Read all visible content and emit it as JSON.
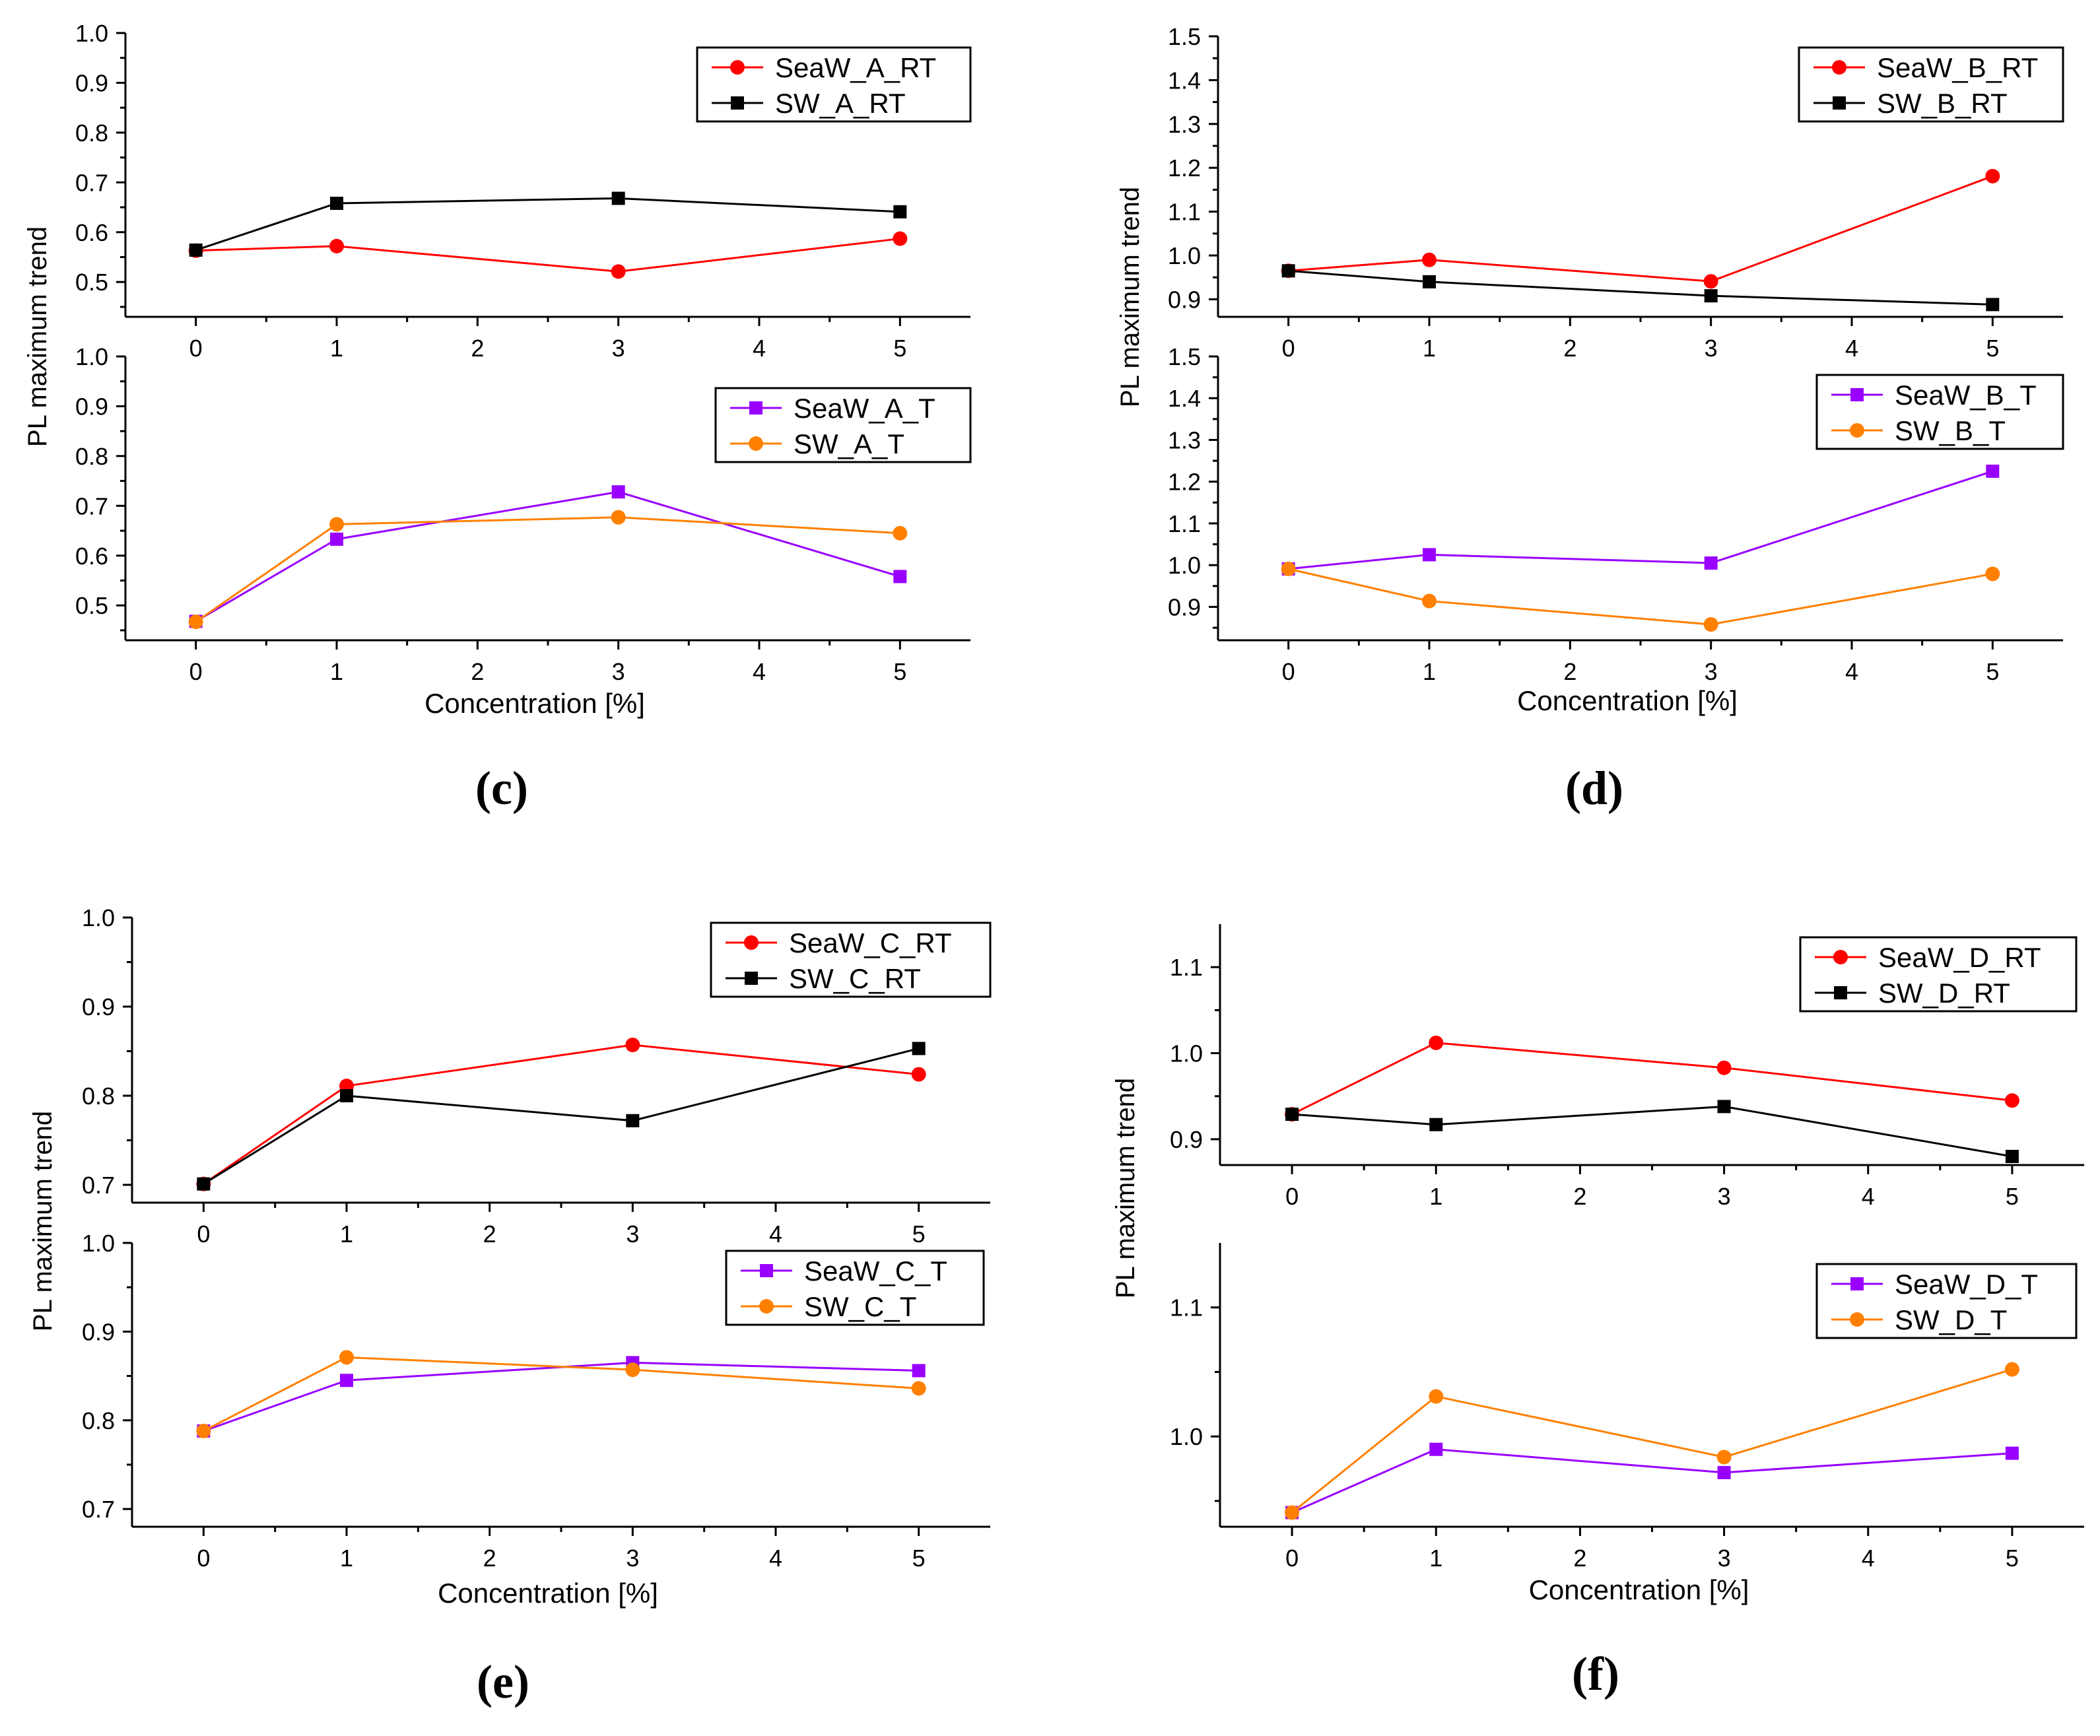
{
  "chart_data": [
    {
      "type": "line",
      "panel": "(c)",
      "ylabel": "PL maximum trend",
      "xlabel": "Concentration [%]",
      "x_ticks": [
        0,
        1,
        2,
        3,
        4,
        5
      ],
      "subplots": [
        {
          "ylim": [
            0.43,
            1.0
          ],
          "y_ticks": [
            0.5,
            0.6,
            0.7,
            0.8,
            0.9,
            1.0
          ],
          "legend_position": "top-right",
          "series": [
            {
              "name": "SeaW_A_RT",
              "color": "#ff0000",
              "marker": "circle",
              "x": [
                0,
                1,
                3,
                5
              ],
              "y": [
                0.563,
                0.572,
                0.521,
                0.587
              ]
            },
            {
              "name": "SW_A_RT",
              "color": "#000000",
              "marker": "square",
              "x": [
                0,
                1,
                3,
                5
              ],
              "y": [
                0.564,
                0.658,
                0.668,
                0.641
              ]
            }
          ]
        },
        {
          "ylim": [
            0.43,
            1.0
          ],
          "y_ticks": [
            0.5,
            0.6,
            0.7,
            0.8,
            0.9,
            1.0
          ],
          "legend_position": "top-right",
          "series": [
            {
              "name": "SeaW_A_T",
              "color": "#9900ff",
              "marker": "square",
              "x": [
                0,
                1,
                3,
                5
              ],
              "y": [
                0.468,
                0.633,
                0.728,
                0.558
              ]
            },
            {
              "name": "SW_A_T",
              "color": "#ff8000",
              "marker": "circle",
              "x": [
                0,
                1,
                3,
                5
              ],
              "y": [
                0.467,
                0.663,
                0.677,
                0.645
              ]
            }
          ]
        }
      ]
    },
    {
      "type": "line",
      "panel": "(d)",
      "ylabel": "PL maximum trend",
      "xlabel": "Concentration [%]",
      "x_ticks": [
        0,
        1,
        2,
        3,
        4,
        5
      ],
      "subplots": [
        {
          "ylim": [
            0.86,
            1.5
          ],
          "y_ticks": [
            0.9,
            1.0,
            1.1,
            1.2,
            1.3,
            1.4,
            1.5
          ],
          "legend_position": "top-right",
          "series": [
            {
              "name": "SeaW_B_RT",
              "color": "#ff0000",
              "marker": "circle",
              "x": [
                0,
                1,
                3,
                5
              ],
              "y": [
                0.965,
                0.99,
                0.941,
                1.181
              ]
            },
            {
              "name": "SW_B_RT",
              "color": "#000000",
              "marker": "square",
              "x": [
                0,
                1,
                3,
                5
              ],
              "y": [
                0.965,
                0.94,
                0.908,
                0.888
              ]
            }
          ]
        },
        {
          "ylim": [
            0.82,
            1.5
          ],
          "y_ticks": [
            0.9,
            1.0,
            1.1,
            1.2,
            1.3,
            1.4,
            1.5
          ],
          "legend_position": "top-right",
          "series": [
            {
              "name": "SeaW_B_T",
              "color": "#9900ff",
              "marker": "square",
              "x": [
                0,
                1,
                3,
                5
              ],
              "y": [
                0.991,
                1.025,
                1.005,
                1.225
              ]
            },
            {
              "name": "SW_B_T",
              "color": "#ff8000",
              "marker": "circle",
              "x": [
                0,
                1,
                3,
                5
              ],
              "y": [
                0.991,
                0.914,
                0.858,
                0.979
              ]
            }
          ]
        }
      ]
    },
    {
      "type": "line",
      "panel": "(e)",
      "ylabel": "PL maximum trend",
      "xlabel": "Concentration [%]",
      "x_ticks": [
        0,
        1,
        2,
        3,
        4,
        5
      ],
      "subplots": [
        {
          "ylim": [
            0.68,
            1.0
          ],
          "y_ticks": [
            0.7,
            0.8,
            0.9,
            1.0
          ],
          "legend_position": "top-right",
          "series": [
            {
              "name": "SeaW_C_RT",
              "color": "#ff0000",
              "marker": "circle",
              "x": [
                0,
                1,
                3,
                5
              ],
              "y": [
                0.701,
                0.811,
                0.857,
                0.824
              ]
            },
            {
              "name": "SW_C_RT",
              "color": "#000000",
              "marker": "square",
              "x": [
                0,
                1,
                3,
                5
              ],
              "y": [
                0.701,
                0.8,
                0.772,
                0.853
              ]
            }
          ]
        },
        {
          "ylim": [
            0.68,
            1.0
          ],
          "y_ticks": [
            0.7,
            0.8,
            0.9,
            1.0
          ],
          "legend_position": "top-right",
          "series": [
            {
              "name": "SeaW_C_T",
              "color": "#9900ff",
              "marker": "square",
              "x": [
                0,
                1,
                3,
                5
              ],
              "y": [
                0.788,
                0.845,
                0.865,
                0.856
              ]
            },
            {
              "name": "SW_C_T",
              "color": "#ff8000",
              "marker": "circle",
              "x": [
                0,
                1,
                3,
                5
              ],
              "y": [
                0.788,
                0.871,
                0.857,
                0.836
              ]
            }
          ]
        }
      ]
    },
    {
      "type": "line",
      "panel": "(f)",
      "ylabel": "PL maximum trend",
      "xlabel": "Concentration [%]",
      "x_ticks": [
        0,
        1,
        2,
        3,
        4,
        5
      ],
      "subplots": [
        {
          "ylim": [
            0.87,
            1.15
          ],
          "y_ticks": [
            0.9,
            1.0,
            1.1
          ],
          "legend_position": "top-right",
          "series": [
            {
              "name": "SeaW_D_RT",
              "color": "#ff0000",
              "marker": "circle",
              "x": [
                0,
                1,
                3,
                5
              ],
              "y": [
                0.929,
                1.012,
                0.983,
                0.945
              ]
            },
            {
              "name": "SW_D_RT",
              "color": "#000000",
              "marker": "square",
              "x": [
                0,
                1,
                3,
                5
              ],
              "y": [
                0.929,
                0.917,
                0.938,
                0.88
              ]
            }
          ]
        },
        {
          "ylim": [
            0.93,
            1.15
          ],
          "y_ticks": [
            1.0,
            1.1
          ],
          "legend_position": "top-right",
          "series": [
            {
              "name": "SeaW_D_T",
              "color": "#9900ff",
              "marker": "square",
              "x": [
                0,
                1,
                3,
                5
              ],
              "y": [
                0.941,
                0.99,
                0.972,
                0.987
              ]
            },
            {
              "name": "SW_D_T",
              "color": "#ff8000",
              "marker": "circle",
              "x": [
                0,
                1,
                3,
                5
              ],
              "y": [
                0.941,
                1.031,
                0.984,
                1.052
              ]
            }
          ]
        }
      ]
    }
  ]
}
